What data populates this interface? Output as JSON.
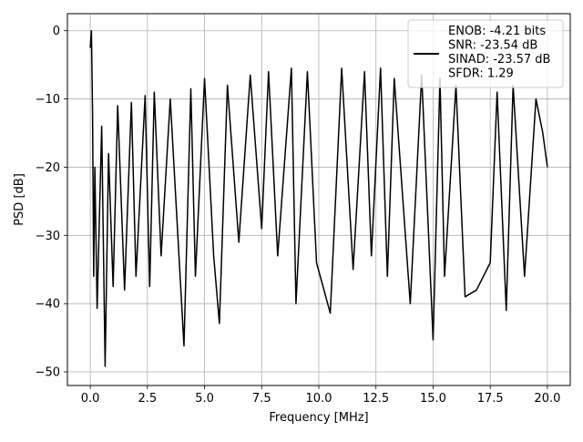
{
  "chart_data": {
    "type": "line",
    "xlabel": "Frequency [MHz]",
    "ylabel": "PSD [dB]",
    "xlim": [
      -1.0,
      21.0
    ],
    "ylim": [
      -52.0,
      2.5
    ],
    "xticks": [
      {
        "value": 0.0,
        "label": "0.0"
      },
      {
        "value": 2.5,
        "label": "2.5"
      },
      {
        "value": 5.0,
        "label": "5.0"
      },
      {
        "value": 7.5,
        "label": "7.5"
      },
      {
        "value": 10.0,
        "label": "10.0"
      },
      {
        "value": 12.5,
        "label": "12.5"
      },
      {
        "value": 15.0,
        "label": "15.0"
      },
      {
        "value": 17.5,
        "label": "17.5"
      },
      {
        "value": 20.0,
        "label": "20.0"
      }
    ],
    "yticks": [
      {
        "value": 0,
        "label": "0"
      },
      {
        "value": -10,
        "label": "−10"
      },
      {
        "value": -20,
        "label": "−20"
      },
      {
        "value": -30,
        "label": "−30"
      },
      {
        "value": -40,
        "label": "−40"
      },
      {
        "value": -50,
        "label": "−50"
      }
    ],
    "grid": true,
    "legend_position": "top-right",
    "legend_lines": [
      "ENOB: -4.21 bits",
      "SNR: -23.54 dB",
      "SINAD: -23.57 dB",
      "SFDR: 1.29"
    ],
    "series": [
      {
        "color": "#000000",
        "x": [
          0.0,
          0.05,
          0.1,
          0.15,
          0.2,
          0.3,
          0.5,
          0.65,
          0.8,
          1.0,
          1.2,
          1.5,
          1.8,
          2.0,
          2.4,
          2.6,
          2.8,
          3.1,
          3.5,
          4.1,
          4.4,
          4.6,
          5.0,
          5.4,
          5.65,
          6.0,
          6.5,
          7.0,
          7.5,
          7.8,
          8.2,
          8.8,
          9.0,
          9.5,
          9.9,
          10.5,
          11.0,
          11.5,
          12.0,
          12.3,
          12.7,
          13.0,
          13.3,
          14.0,
          14.5,
          15.0,
          15.3,
          15.5,
          16.0,
          16.4,
          16.9,
          17.5,
          17.8,
          18.2,
          18.5,
          19.0,
          19.5,
          19.8,
          20.0
        ],
        "y": [
          -2.5,
          0.0,
          -12.0,
          -36.0,
          -20.0,
          -40.7,
          -14.0,
          -49.2,
          -18.0,
          -37.5,
          -11.0,
          -38.0,
          -10.5,
          -36.0,
          -9.5,
          -37.5,
          -9.0,
          -33.0,
          -10.0,
          -46.2,
          -8.5,
          -36.0,
          -7.0,
          -33.0,
          -42.9,
          -8.0,
          -31.0,
          -6.5,
          -29.0,
          -6.0,
          -33.0,
          -5.5,
          -40.0,
          -6.0,
          -34.0,
          -41.4,
          -5.5,
          -35.0,
          -6.0,
          -33.0,
          -5.5,
          -36.0,
          -7.0,
          -40.0,
          -6.5,
          -45.3,
          -7.0,
          -36.0,
          -8.0,
          -39.0,
          -38.0,
          -34.0,
          -9.0,
          -41.0,
          -8.0,
          -36.0,
          -10.0,
          -15.0,
          -20.0
        ]
      }
    ]
  }
}
